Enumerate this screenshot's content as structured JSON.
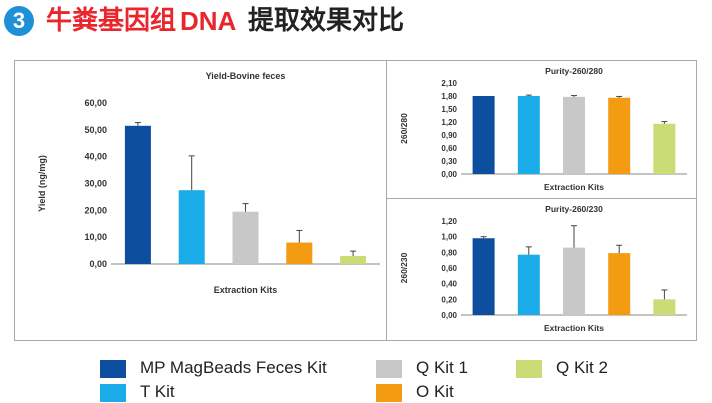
{
  "header": {
    "badge": "3",
    "title_part1": "牛粪基因组",
    "title_part2": "DNA",
    "title_part3": "提取效果对比"
  },
  "colors": {
    "title_red": "#e8262c",
    "badge_blue": "#1f8fd6",
    "series": [
      "#0d4f9e",
      "#1aace8",
      "#c8c8c8",
      "#f39c12",
      "#c9dc75"
    ],
    "error_bar": "#444444",
    "axis": "#888888"
  },
  "chart_data": [
    {
      "type": "bar",
      "title": "Yield-Bovine  feces",
      "xlabel": "Extraction Kits",
      "ylabel": "Yield (ng/mg)",
      "categories": [
        "MP MagBeads Feces  Kit",
        "T Kit",
        "Q Kit 1",
        "O Kit",
        "Q Kit 2"
      ],
      "values": [
        51.5,
        27.5,
        19.5,
        8.0,
        3.0
      ],
      "errors": [
        1.2,
        12.8,
        3.0,
        4.5,
        1.8
      ],
      "ylim": [
        0,
        60
      ],
      "yticks": [
        "0,00",
        "10,00",
        "20,00",
        "30,00",
        "40,00",
        "50,00",
        "60,00"
      ]
    },
    {
      "type": "bar",
      "title": "Purity-260/280",
      "xlabel": "Extraction Kits",
      "ylabel": "260/280",
      "categories": [
        "MP MagBeads Feces  Kit",
        "T Kit",
        "Q Kit 1",
        "O Kit",
        "Q Kit 2"
      ],
      "values": [
        1.8,
        1.8,
        1.78,
        1.76,
        1.16
      ],
      "errors": [
        0.0,
        0.02,
        0.03,
        0.03,
        0.05
      ],
      "ylim": [
        0,
        2.1
      ],
      "yticks": [
        "0,00",
        "0,30",
        "0,60",
        "0,90",
        "1,20",
        "1,50",
        "1,80",
        "2,10"
      ]
    },
    {
      "type": "bar",
      "title": "Purity-260/230",
      "xlabel": "Extraction Kits",
      "ylabel": "260/230",
      "categories": [
        "MP MagBeads Feces  Kit",
        "T Kit",
        "Q Kit 1",
        "O Kit",
        "Q Kit 2"
      ],
      "values": [
        0.98,
        0.77,
        0.86,
        0.79,
        0.2
      ],
      "errors": [
        0.02,
        0.1,
        0.28,
        0.1,
        0.12
      ],
      "ylim": [
        0,
        1.2
      ],
      "yticks": [
        "0,00",
        "0,20",
        "0,40",
        "0,60",
        "0,80",
        "1,00",
        "1,20"
      ]
    }
  ],
  "legend": [
    {
      "label": "MP MagBeads Feces  Kit",
      "color": "#0d4f9e"
    },
    {
      "label": "T Kit",
      "color": "#1aace8"
    },
    {
      "label": "Q Kit 1",
      "color": "#c8c8c8"
    },
    {
      "label": "O Kit",
      "color": "#f39c12"
    },
    {
      "label": "Q Kit 2",
      "color": "#c9dc75"
    }
  ]
}
